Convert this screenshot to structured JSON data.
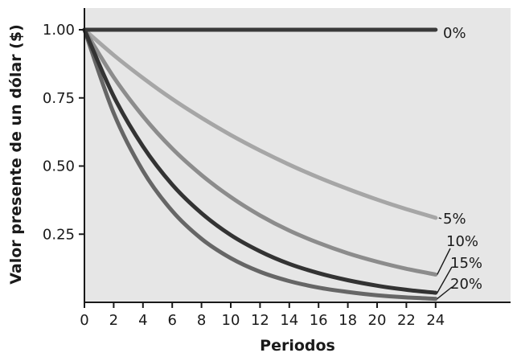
{
  "chart_data": {
    "type": "line",
    "title": "",
    "xlabel": "Periodos",
    "ylabel": "Valor presente de un dólar ($)",
    "xlim": [
      0,
      24
    ],
    "ylim": [
      0,
      1.08
    ],
    "x_ticks": [
      0,
      2,
      4,
      6,
      8,
      10,
      12,
      14,
      16,
      18,
      20,
      22,
      24
    ],
    "x_tick_labels": [
      "0",
      "2",
      "4",
      "6",
      "8",
      "10",
      "12",
      "14",
      "16",
      "18",
      "20",
      "22",
      "24"
    ],
    "y_ticks": [
      0.25,
      0.5,
      0.75,
      1.0
    ],
    "y_tick_labels": [
      "0.25",
      "0.50",
      "0.75",
      "1.00"
    ],
    "grid": false,
    "x": [
      0,
      2,
      4,
      6,
      8,
      10,
      12,
      14,
      16,
      18,
      20,
      22,
      24
    ],
    "series": [
      {
        "name": "0%",
        "color": "#3a3a3a",
        "values": [
          1,
          1,
          1,
          1,
          1,
          1,
          1,
          1,
          1,
          1,
          1,
          1,
          1
        ]
      },
      {
        "name": "5%",
        "color": "#a6a6a6",
        "values": [
          1,
          0.907,
          0.823,
          0.746,
          0.677,
          0.614,
          0.557,
          0.505,
          0.458,
          0.416,
          0.377,
          0.342,
          0.31
        ]
      },
      {
        "name": "10%",
        "color": "#8c8c8c",
        "values": [
          1,
          0.826,
          0.683,
          0.564,
          0.467,
          0.386,
          0.319,
          0.263,
          0.218,
          0.18,
          0.149,
          0.123,
          0.102
        ]
      },
      {
        "name": "15%",
        "color": "#333333",
        "values": [
          1,
          0.756,
          0.572,
          0.432,
          0.327,
          0.247,
          0.187,
          0.141,
          0.107,
          0.081,
          0.061,
          0.046,
          0.035
        ]
      },
      {
        "name": "20%",
        "color": "#666666",
        "values": [
          1,
          0.694,
          0.482,
          0.335,
          0.233,
          0.162,
          0.112,
          0.078,
          0.054,
          0.038,
          0.026,
          0.018,
          0.013
        ]
      }
    ]
  }
}
